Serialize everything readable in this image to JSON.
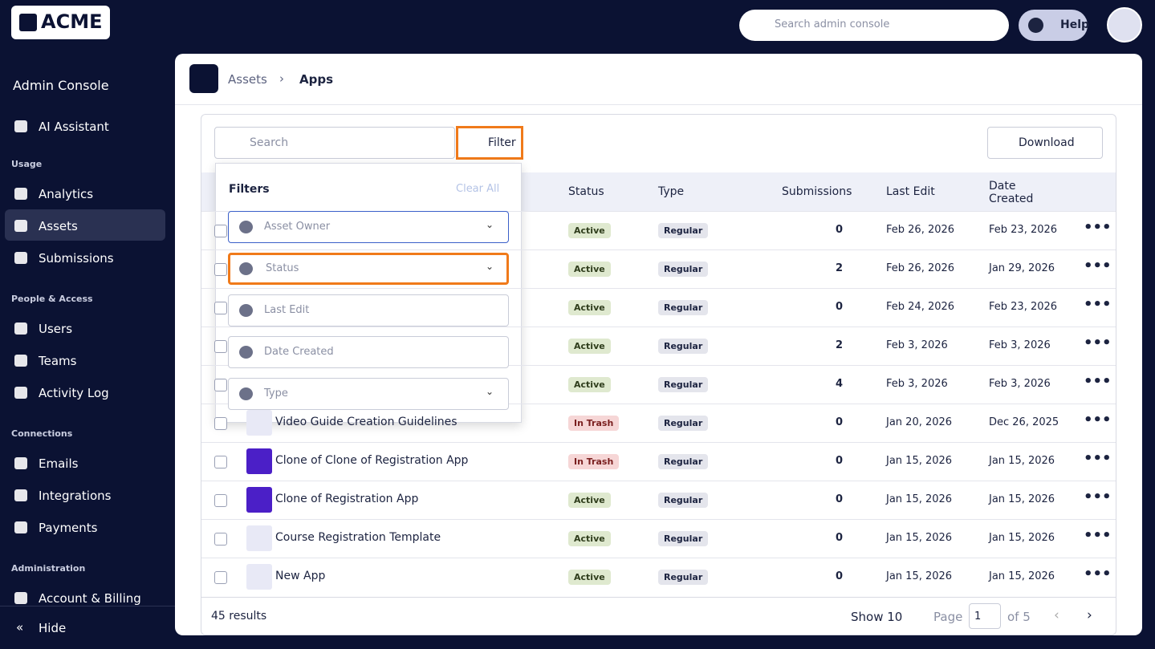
{
  "logo": "ACME",
  "header": {
    "search_placeholder": "Search admin console",
    "help": "Help"
  },
  "sidebar": {
    "title": "Admin Console",
    "groups": [
      {
        "items": [
          "AI Assistant"
        ]
      },
      {
        "label": "Usage",
        "items": [
          "Analytics",
          "Assets",
          "Submissions"
        ]
      },
      {
        "label": "People & Access",
        "items": [
          "Users",
          "Teams",
          "Activity Log"
        ]
      },
      {
        "label": "Connections",
        "items": [
          "Emails",
          "Integrations",
          "Payments"
        ]
      },
      {
        "label": "Administration",
        "items": [
          "Account & Billing"
        ]
      }
    ],
    "hide": "Hide"
  },
  "breadcrumb": [
    "Assets",
    "Apps"
  ],
  "toolbar": {
    "search_placeholder": "Search",
    "filter": "Filter",
    "download": "Download"
  },
  "table": {
    "columns": [
      "Status",
      "Type",
      "Submissions",
      "Last Edit",
      "Date Created"
    ],
    "rows": [
      {
        "status": "Active",
        "type": "Regular",
        "submissions": "0",
        "last_edit": "Feb 26, 2026",
        "date_created": "Feb 23, 2026"
      },
      {
        "status": "Active",
        "type": "Regular",
        "submissions": "2",
        "last_edit": "Feb 26, 2026",
        "date_created": "Jan 29, 2026"
      },
      {
        "status": "Active",
        "type": "Regular",
        "submissions": "0",
        "last_edit": "Feb 24, 2026",
        "date_created": "Feb 23, 2026"
      },
      {
        "status": "Active",
        "type": "Regular",
        "submissions": "2",
        "last_edit": "Feb 3, 2026",
        "date_created": "Feb 3, 2026"
      },
      {
        "status": "Active",
        "type": "Regular",
        "submissions": "4",
        "last_edit": "Feb 3, 2026",
        "date_created": "Feb 3, 2026"
      },
      {
        "name": "Video Guide Creation Guidelines",
        "status": "In Trash",
        "type": "Regular",
        "submissions": "0",
        "last_edit": "Jan 20, 2026",
        "date_created": "Dec 26, 2025"
      },
      {
        "name": "Clone of Clone of Registration App",
        "status": "In Trash",
        "type": "Regular",
        "submissions": "0",
        "last_edit": "Jan 15, 2026",
        "date_created": "Jan 15, 2026"
      },
      {
        "name": "Clone of Registration App",
        "status": "Active",
        "type": "Regular",
        "submissions": "0",
        "last_edit": "Jan 15, 2026",
        "date_created": "Jan 15, 2026"
      },
      {
        "name": "Course Registration Template",
        "status": "Active",
        "type": "Regular",
        "submissions": "0",
        "last_edit": "Jan 15, 2026",
        "date_created": "Jan 15, 2026"
      },
      {
        "name": "New App",
        "status": "Active",
        "type": "Regular",
        "submissions": "0",
        "last_edit": "Jan 15, 2026",
        "date_created": "Jan 15, 2026"
      }
    ]
  },
  "filters": {
    "title": "Filters",
    "clear": "Clear All",
    "fields": [
      "Asset Owner",
      "Status",
      "Last Edit",
      "Date Created",
      "Type"
    ]
  },
  "footer": {
    "results": "45 results",
    "show": "Show 10",
    "page_label": "Page",
    "page_value": "1",
    "of": "of 5"
  }
}
